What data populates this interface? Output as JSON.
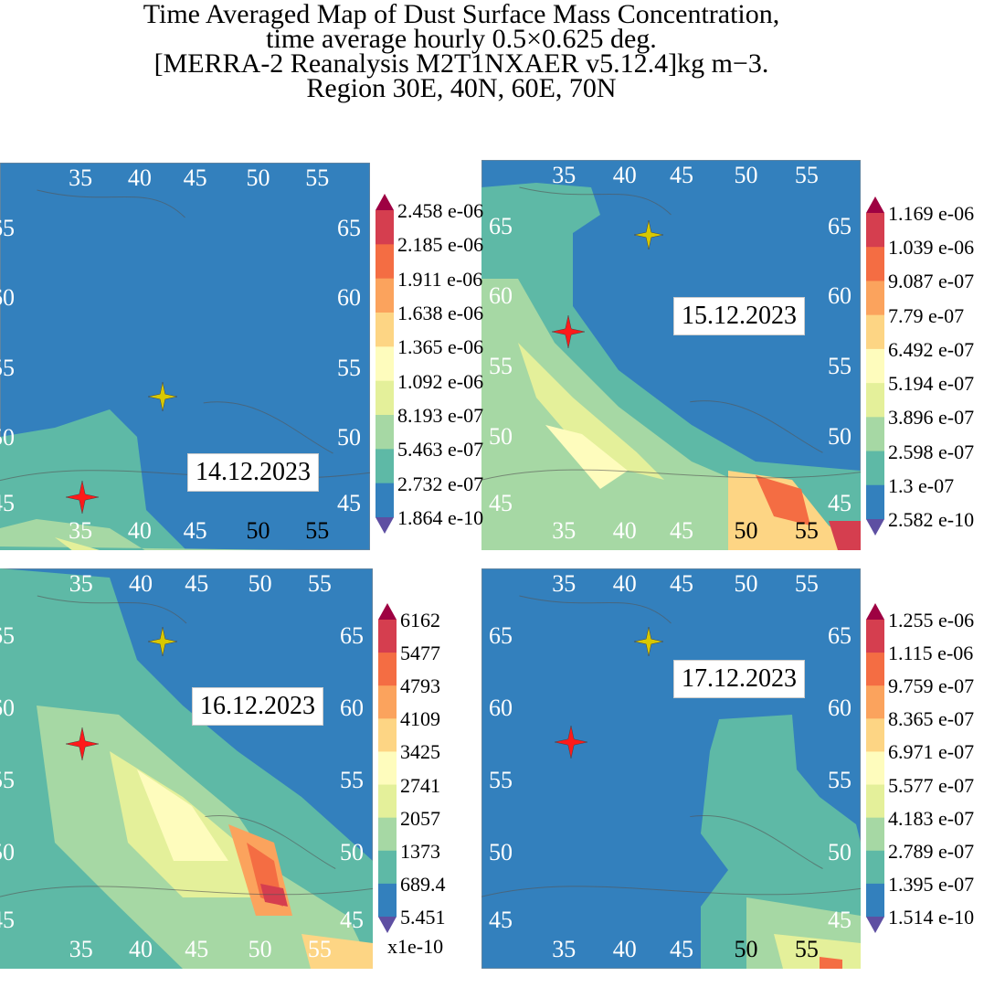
{
  "title": [
    "Time Averaged Map of Dust Surface Mass Concentration,",
    "time average hourly 0.5×0.625 deg.",
    "[MERRA-2 Reanalysis M2T1NXAER v5.12.4]kg m−3.",
    "Region 30E, 40N, 60E, 70N"
  ],
  "colors": {
    "ocean_low": "#3380bd",
    "c1": "#5eb9a6",
    "c2": "#a6d8a4",
    "c3": "#e4f09a",
    "c4": "#fefcbd",
    "c5": "#fdd584",
    "c6": "#fba35d",
    "c7": "#f46d43",
    "c8": "#d53e4f",
    "over": "#9e0142",
    "under": "#5e4fa2",
    "star_red": "#ff1a1a",
    "star_yellow": "#d8c800"
  },
  "x_ticks": [
    "35",
    "40",
    "45",
    "50",
    "55"
  ],
  "y_ticks": [
    "65",
    "60",
    "55",
    "50",
    "45"
  ],
  "panels": [
    {
      "date": "14.12.2023",
      "legend": [
        "2.458 e-06",
        "2.185 e-06",
        "1.911 e-06",
        "1.638 e-06",
        "1.365 e-06",
        "1.092 e-06",
        "8.193 e-07",
        "5.463 e-07",
        "2.732 e-07",
        "1.864 e-10"
      ],
      "unit": ""
    },
    {
      "date": "15.12.2023",
      "legend": [
        "1.169 e-06",
        "1.039 e-06",
        "9.087 e-07",
        "7.79 e-07",
        "6.492 e-07",
        "5.194 e-07",
        "3.896 e-07",
        "2.598 e-07",
        "1.3 e-07",
        "2.582 e-10"
      ],
      "unit": ""
    },
    {
      "date": "16.12.2023",
      "legend": [
        "6162",
        "5477",
        "4793",
        "4109",
        "3425",
        "2741",
        "2057",
        "1373",
        "689.4",
        "5.451"
      ],
      "unit": "x1e-10"
    },
    {
      "date": "17.12.2023",
      "legend": [
        "1.255 e-06",
        "1.115 e-06",
        "9.759 e-07",
        "8.365 e-07",
        "6.971 e-07",
        "5.577 e-07",
        "4.183 e-07",
        "2.789 e-07",
        "1.395 e-07",
        "1.514 e-10"
      ],
      "unit": ""
    }
  ]
}
